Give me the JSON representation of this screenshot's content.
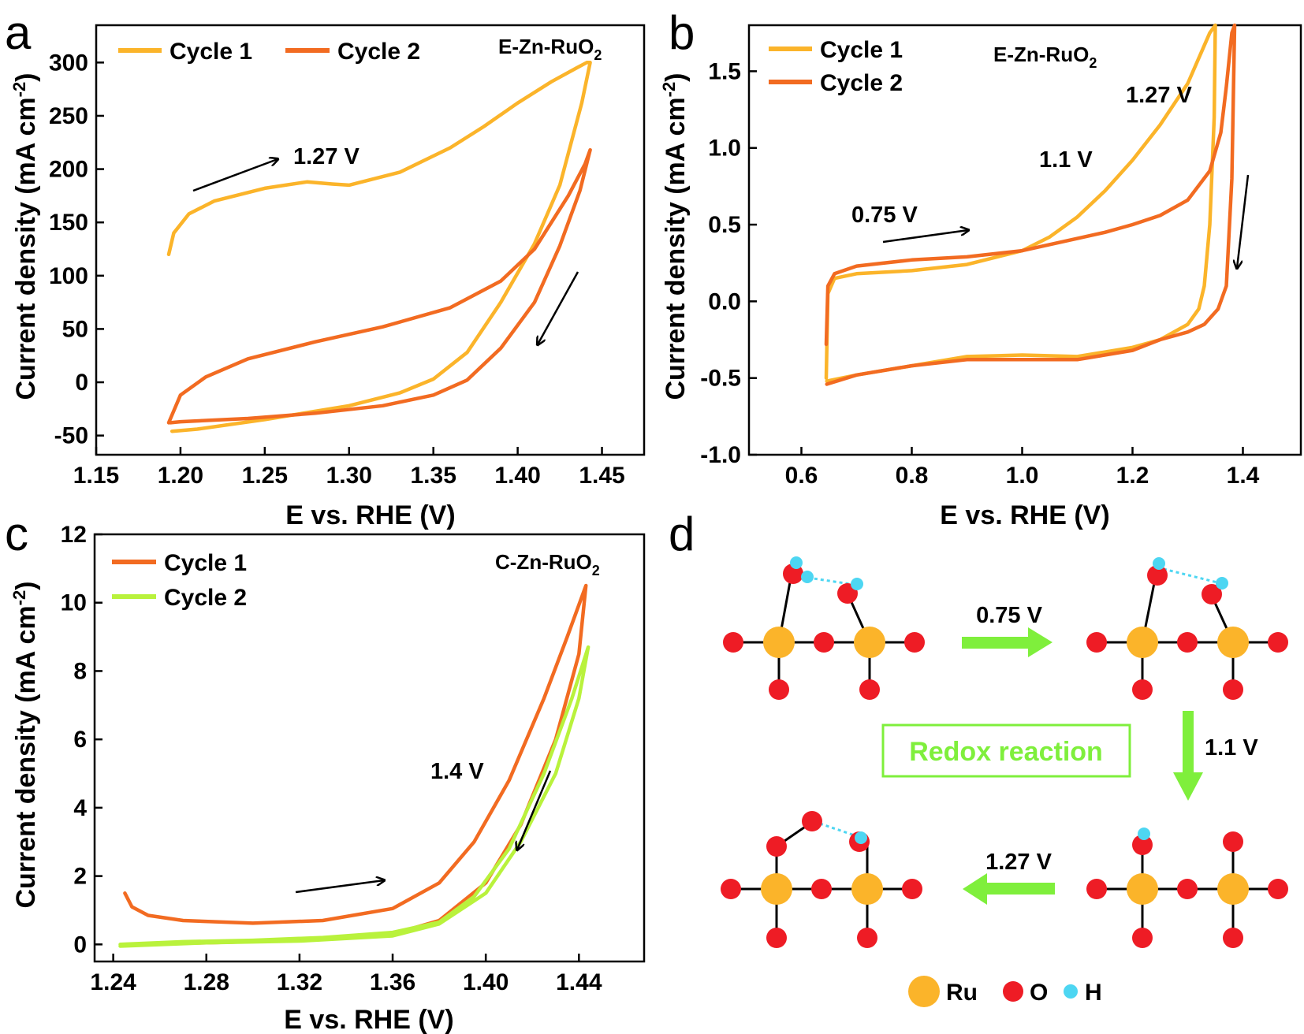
{
  "colors": {
    "cycle_yellow": "#fbb42a",
    "cycle_orange": "#f26b21",
    "cycle_green": "#b9f23c",
    "ru": "#fbb42a",
    "o": "#ee1c25",
    "h": "#4dd6f2",
    "green_arrow": "#7fef3c",
    "redox_text": "#7fef3c"
  },
  "chart_data": [
    {
      "panel": "a",
      "type": "line",
      "sample_label": "E-Zn-RuO",
      "sample_sub": "2",
      "xlabel": "E vs. RHE (V)",
      "ylabel": "Current density (mA cm",
      "ylabel_sup": "-2",
      "ylabel_end": ")",
      "xlim": [
        1.15,
        1.475
      ],
      "ylim": [
        -68,
        335
      ],
      "xticks": [
        "1.15",
        "1.20",
        "1.25",
        "1.30",
        "1.35",
        "1.40",
        "1.45"
      ],
      "yticks": [
        "-50",
        "0",
        "50",
        "100",
        "150",
        "200",
        "250",
        "300"
      ],
      "legend": [
        "Cycle 1",
        "Cycle 2"
      ],
      "annotation": "1.27 V",
      "series": [
        {
          "name": "Cycle 1",
          "color_key": "cycle_yellow",
          "x": [
            1.193,
            1.196,
            1.205,
            1.22,
            1.25,
            1.275,
            1.29,
            1.3,
            1.33,
            1.36,
            1.38,
            1.4,
            1.42,
            1.435,
            1.441,
            1.443,
            1.438,
            1.425,
            1.41,
            1.39,
            1.37,
            1.35,
            1.33,
            1.3,
            1.25,
            1.21,
            1.195
          ],
          "y": [
            120,
            140,
            158,
            170,
            182,
            188,
            186,
            185,
            197,
            220,
            240,
            262,
            282,
            295,
            300,
            300,
            262,
            185,
            130,
            75,
            28,
            3,
            -10,
            -22,
            -35,
            -44,
            -46
          ]
        },
        {
          "name": "Cycle 2",
          "color_key": "cycle_orange",
          "x": [
            1.193,
            1.2,
            1.215,
            1.24,
            1.28,
            1.32,
            1.36,
            1.39,
            1.41,
            1.43,
            1.44,
            1.443,
            1.437,
            1.425,
            1.41,
            1.39,
            1.37,
            1.35,
            1.32,
            1.28,
            1.24,
            1.2,
            1.194
          ],
          "y": [
            -38,
            -12,
            5,
            22,
            38,
            52,
            70,
            95,
            125,
            175,
            205,
            218,
            180,
            128,
            75,
            32,
            2,
            -12,
            -22,
            -29,
            -34,
            -37,
            -38
          ]
        }
      ]
    },
    {
      "panel": "b",
      "type": "line",
      "sample_label": "E-Zn-RuO",
      "sample_sub": "2",
      "xlabel": "E vs. RHE (V)",
      "ylabel": "Current density (mA cm",
      "ylabel_sup": "-2",
      "ylabel_end": ")",
      "xlim": [
        0.505,
        1.505
      ],
      "ylim": [
        -1.0,
        1.8
      ],
      "xticks": [
        "0.6",
        "0.8",
        "1.0",
        "1.2",
        "1.4"
      ],
      "yticks": [
        "-1.0",
        "-0.5",
        "0.0",
        "0.5",
        "1.0",
        "1.5"
      ],
      "legend": [
        "Cycle 1",
        "Cycle 2"
      ],
      "annotations": [
        "0.75 V",
        "1.1 V",
        "1.27 V"
      ],
      "series": [
        {
          "name": "Cycle 1",
          "color_key": "cycle_yellow",
          "x": [
            0.645,
            0.648,
            0.66,
            0.7,
            0.8,
            0.9,
            1.0,
            1.05,
            1.1,
            1.15,
            1.2,
            1.25,
            1.3,
            1.34,
            1.35,
            1.348,
            1.34,
            1.33,
            1.32,
            1.3,
            1.25,
            1.2,
            1.1,
            1.0,
            0.9,
            0.8,
            0.7,
            0.646
          ],
          "y": [
            -0.5,
            0.05,
            0.15,
            0.18,
            0.2,
            0.24,
            0.33,
            0.42,
            0.55,
            0.72,
            0.92,
            1.15,
            1.42,
            1.75,
            1.8,
            1.2,
            0.5,
            0.1,
            -0.05,
            -0.15,
            -0.25,
            -0.3,
            -0.36,
            -0.35,
            -0.36,
            -0.42,
            -0.48,
            -0.52
          ]
        },
        {
          "name": "Cycle 2",
          "color_key": "cycle_orange",
          "x": [
            0.645,
            0.648,
            0.66,
            0.7,
            0.8,
            0.9,
            1.0,
            1.05,
            1.1,
            1.15,
            1.2,
            1.25,
            1.3,
            1.34,
            1.36,
            1.37,
            1.38,
            1.385,
            1.38,
            1.37,
            1.355,
            1.33,
            1.3,
            1.25,
            1.2,
            1.1,
            1.0,
            0.9,
            0.8,
            0.7,
            0.646
          ],
          "y": [
            -0.28,
            0.1,
            0.18,
            0.23,
            0.27,
            0.29,
            0.33,
            0.37,
            0.41,
            0.45,
            0.5,
            0.56,
            0.66,
            0.85,
            1.1,
            1.4,
            1.75,
            1.8,
            0.8,
            0.1,
            -0.05,
            -0.15,
            -0.2,
            -0.25,
            -0.32,
            -0.38,
            -0.38,
            -0.38,
            -0.42,
            -0.48,
            -0.54
          ]
        }
      ]
    },
    {
      "panel": "c",
      "type": "line",
      "sample_label": "C-Zn-RuO",
      "sample_sub": "2",
      "xlabel": "E vs. RHE (V)",
      "ylabel": "Current density (mA cm",
      "ylabel_sup": "-2",
      "ylabel_end": ")",
      "xlim": [
        1.232,
        1.468
      ],
      "ylim": [
        -0.5,
        12
      ],
      "xticks": [
        "1.24",
        "1.28",
        "1.32",
        "1.36",
        "1.40",
        "1.44"
      ],
      "yticks": [
        "0",
        "2",
        "4",
        "6",
        "8",
        "10",
        "12"
      ],
      "legend": [
        "Cycle 1",
        "Cycle 2"
      ],
      "annotation": "1.4 V",
      "series": [
        {
          "name": "Cycle 1",
          "color_key": "cycle_orange",
          "x": [
            1.245,
            1.248,
            1.255,
            1.27,
            1.3,
            1.33,
            1.36,
            1.38,
            1.395,
            1.41,
            1.425,
            1.435,
            1.443,
            1.44,
            1.43,
            1.415,
            1.4,
            1.38,
            1.36,
            1.32,
            1.28,
            1.245
          ],
          "y": [
            1.5,
            1.1,
            0.85,
            0.7,
            0.62,
            0.7,
            1.05,
            1.8,
            3.0,
            4.8,
            7.2,
            9.0,
            10.5,
            8.5,
            6.0,
            3.5,
            1.8,
            0.7,
            0.3,
            0.12,
            0.05,
            0.0
          ]
        },
        {
          "name": "Cycle 2",
          "color_key": "cycle_green",
          "x": [
            1.243,
            1.27,
            1.3,
            1.33,
            1.36,
            1.38,
            1.395,
            1.41,
            1.425,
            1.437,
            1.444,
            1.44,
            1.43,
            1.415,
            1.4,
            1.38,
            1.36,
            1.32,
            1.28,
            1.243
          ],
          "y": [
            0.0,
            0.08,
            0.12,
            0.2,
            0.35,
            0.65,
            1.4,
            2.8,
            5.0,
            7.2,
            8.7,
            7.2,
            5.0,
            3.0,
            1.5,
            0.6,
            0.25,
            0.1,
            0.05,
            -0.05
          ]
        }
      ]
    }
  ],
  "panel_letters": [
    "a",
    "b",
    "c",
    "d"
  ],
  "scheme": {
    "step1_label": "0.75 V",
    "step2_label": "1.1 V",
    "step3_label": "1.27 V",
    "box_label": "Redox reaction",
    "legend_ru": "Ru",
    "legend_o": "O",
    "legend_h": "H"
  }
}
